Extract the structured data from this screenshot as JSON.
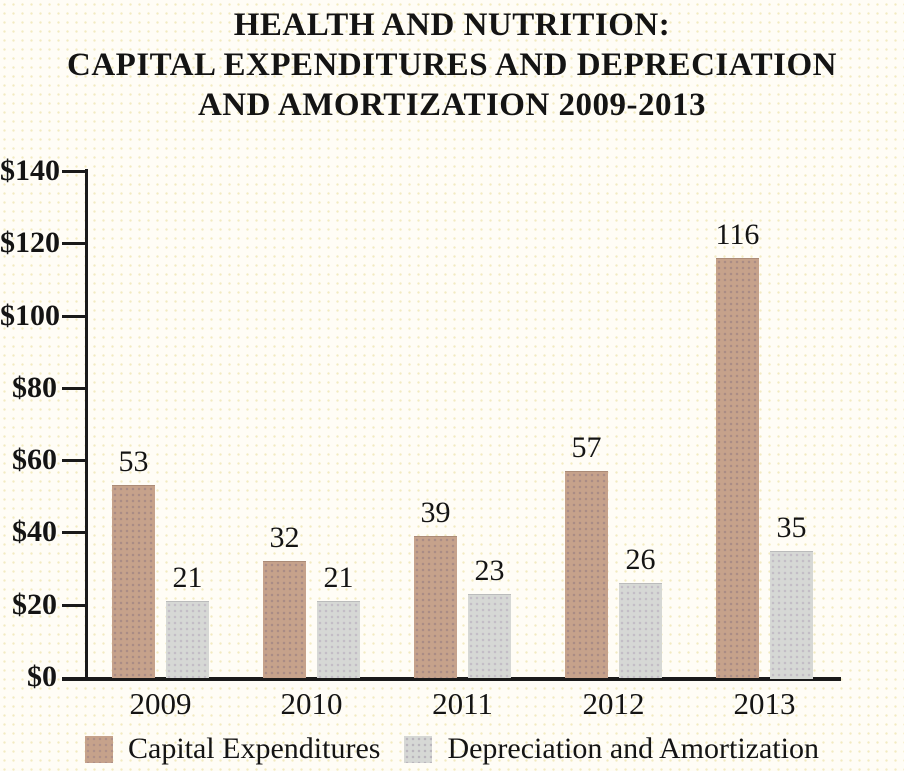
{
  "title": {
    "line1": "HEALTH AND NUTRITION:",
    "line2": "CAPITAL EXPENDITURES AND DEPRECIATION",
    "line3": "AND AMORTIZATION 2009-2013"
  },
  "chart_data": {
    "type": "bar",
    "categories": [
      "2009",
      "2010",
      "2011",
      "2012",
      "2013"
    ],
    "series": [
      {
        "name": "Capital Expenditures",
        "color": "#c6a28b",
        "values": [
          53,
          32,
          39,
          57,
          116
        ]
      },
      {
        "name": "Depreciation and Amortization",
        "color": "#d6d8d5",
        "values": [
          21,
          21,
          23,
          26,
          35
        ]
      }
    ],
    "title": "HEALTH AND NUTRITION: CAPITAL EXPENDITURES AND DEPRECIATION AND AMORTIZATION 2009-2013",
    "xlabel": "",
    "ylabel": "",
    "ylim": [
      0,
      140
    ],
    "ytick_step": 20,
    "ytick_prefix": "$",
    "ytick_labels": [
      "$0",
      "$20",
      "$40",
      "$60",
      "$80",
      "$100",
      "$120",
      "$140"
    ],
    "bar_value_labels": true,
    "grid": false,
    "legend_position": "bottom"
  },
  "colors": {
    "capital_expenditures": "#c6a28b",
    "depreciation_amortization": "#d6d8d5",
    "axis": "#1a1a1a",
    "background": "#fffdf6",
    "text": "#141414"
  }
}
